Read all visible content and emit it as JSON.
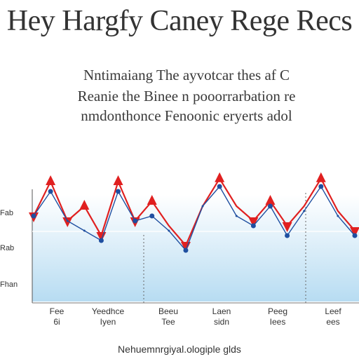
{
  "chart_data": {
    "type": "line",
    "title": "Hey Hargfy Caney Rege Recs",
    "subtitle": [
      "Nntimaiang The ayvotcar thes af C",
      "Reanie the Binee n pooorrarbation re",
      "nmdonthonce Fenoonic eryerts adol"
    ],
    "xlabel": "Nehuemnrgiyal.ologiple glds",
    "ylabel": "",
    "ytick_labels": [
      "Fab",
      "Rab",
      "Fhan"
    ],
    "xtick_labels": [
      [
        "Fee",
        "6i"
      ],
      [
        "Yeedhce",
        "Iyen"
      ],
      [
        "Beeu",
        "Tee"
      ],
      [
        "Laen",
        "sidn"
      ],
      [
        "Peeg",
        "Iees"
      ],
      [
        "Leef",
        "ees"
      ]
    ],
    "x": [
      0,
      1,
      2,
      3,
      4,
      5,
      6,
      7,
      8,
      9,
      10,
      11,
      12,
      13,
      14,
      15,
      16,
      17,
      18,
      19
    ],
    "series": [
      {
        "color": "#e02020",
        "values": [
          0.6,
          0.95,
          0.55,
          0.7,
          0.4,
          0.95,
          0.55,
          0.75,
          0.5,
          0.3,
          0.7,
          0.98,
          0.7,
          0.55,
          0.75,
          0.5,
          0.7,
          0.98,
          0.65,
          0.45
        ]
      },
      {
        "color": "#1f4fa0",
        "values": [
          0.6,
          0.85,
          0.55,
          0.45,
          0.35,
          0.85,
          0.55,
          0.6,
          0.45,
          0.25,
          0.7,
          0.9,
          0.6,
          0.5,
          0.7,
          0.4,
          0.65,
          0.9,
          0.6,
          0.4
        ]
      }
    ],
    "ylim": [
      0,
      1
    ],
    "grid": false,
    "background_gradient": [
      "#ffffff",
      "#b7dcf2"
    ]
  }
}
